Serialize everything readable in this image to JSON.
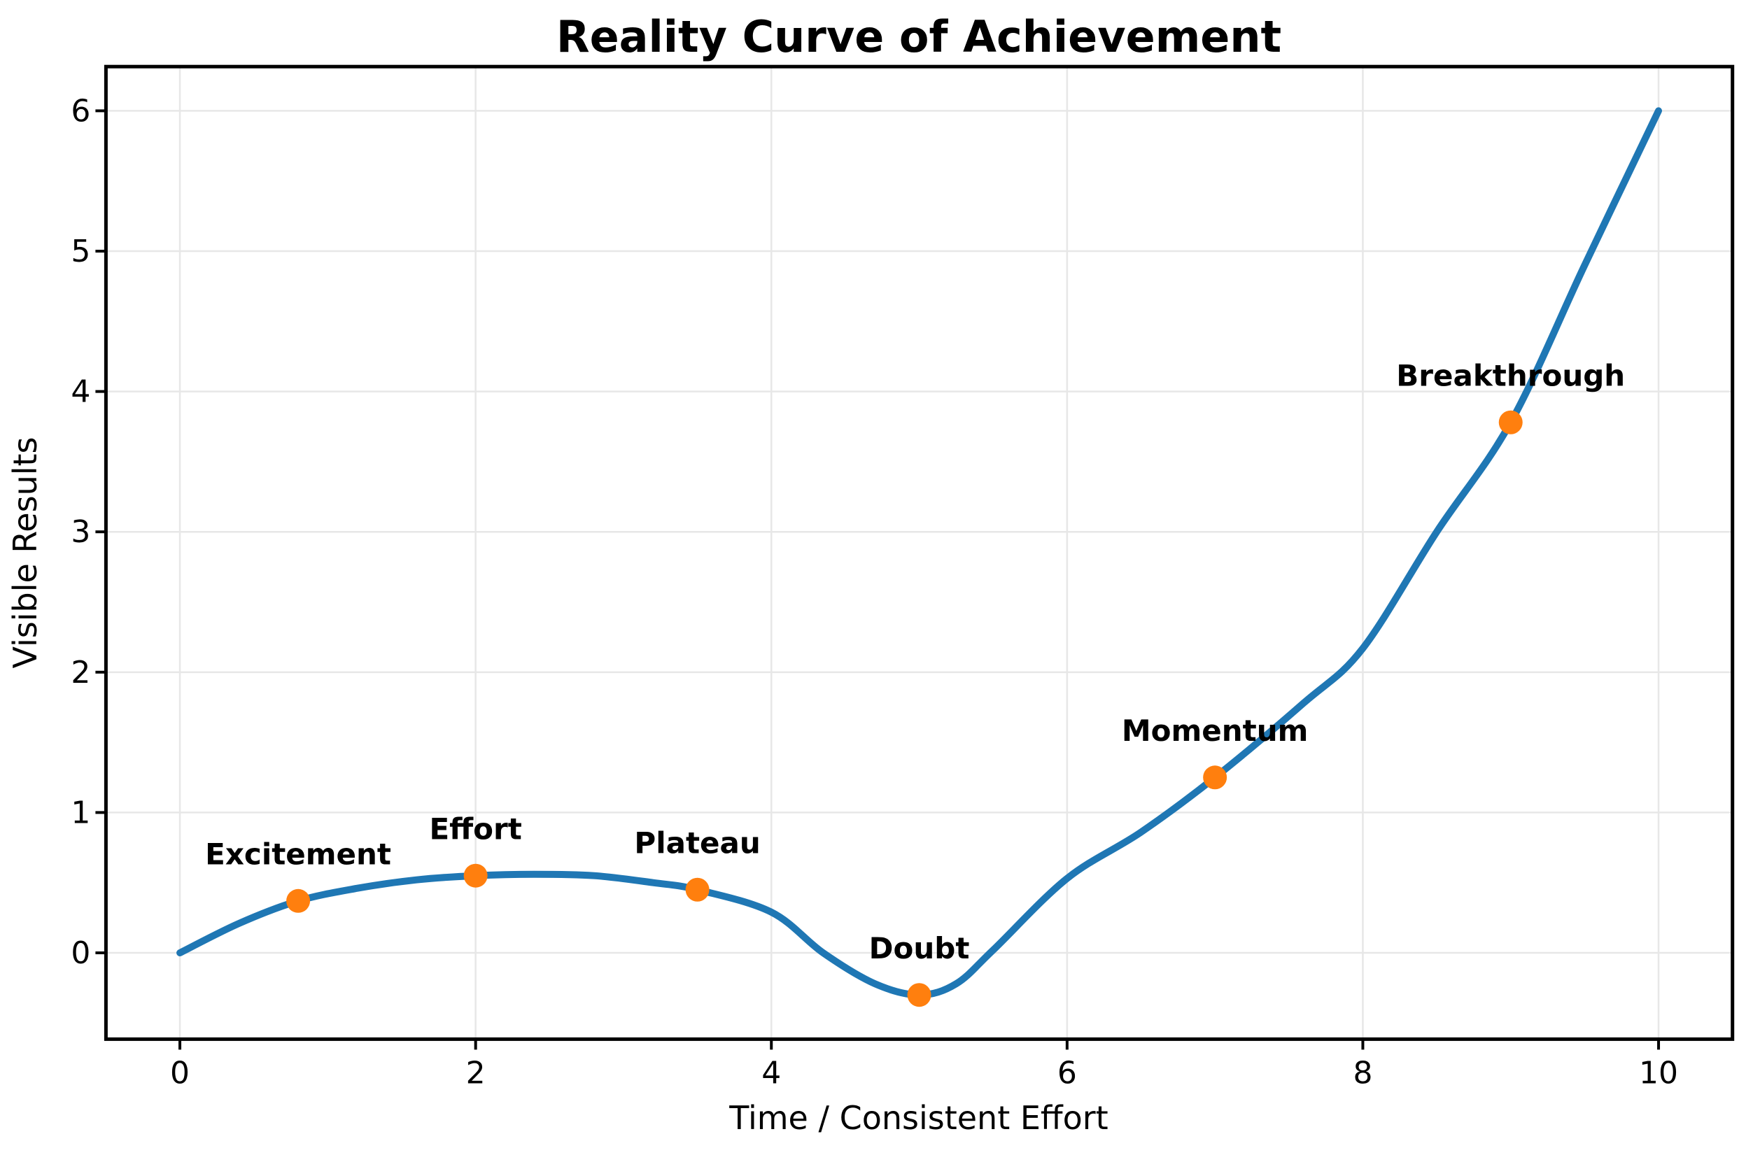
{
  "figure": {
    "title": "Reality Curve of Achievement",
    "xlabel": "Time / Consistent Effort",
    "ylabel": "Visible Results"
  },
  "chart_data": {
    "type": "line",
    "title": "Reality Curve of Achievement",
    "xlabel": "Time / Consistent Effort",
    "ylabel": "Visible Results",
    "xlim": [
      -0.5,
      10.5
    ],
    "ylim": [
      -0.615,
      6.315
    ],
    "xticks": [
      0,
      2,
      4,
      6,
      8,
      10
    ],
    "yticks": [
      0,
      1,
      2,
      3,
      4,
      5,
      6
    ],
    "grid": true,
    "legend": "none",
    "line_color": "#1f77b4",
    "marker_color": "#ff7f0e",
    "grid_color": "#e7e7e7",
    "spine_color": "#000000",
    "curve": [
      [
        0,
        0
      ],
      [
        0.4,
        0.21
      ],
      [
        0.8,
        0.37
      ],
      [
        1.2,
        0.46
      ],
      [
        1.6,
        0.52
      ],
      [
        2,
        0.55
      ],
      [
        2.4,
        0.56
      ],
      [
        2.8,
        0.55
      ],
      [
        3.2,
        0.5
      ],
      [
        3.5,
        0.45
      ],
      [
        4,
        0.29
      ],
      [
        4.35,
        0
      ],
      [
        4.7,
        -0.22
      ],
      [
        5,
        -0.3
      ],
      [
        5.25,
        -0.22
      ],
      [
        5.5,
        0.02
      ],
      [
        6,
        0.53
      ],
      [
        6.5,
        0.86
      ],
      [
        7,
        1.25
      ],
      [
        7.6,
        1.78
      ],
      [
        8,
        2.17
      ],
      [
        8.5,
        3.0
      ],
      [
        9,
        3.78
      ],
      [
        9.5,
        4.9
      ],
      [
        10,
        6
      ]
    ],
    "points": [
      {
        "label": "Excitement",
        "x": 0.8,
        "y": 0.37
      },
      {
        "label": "Effort",
        "x": 2.0,
        "y": 0.55
      },
      {
        "label": "Plateau",
        "x": 3.5,
        "y": 0.45
      },
      {
        "label": "Doubt",
        "x": 5.0,
        "y": -0.3
      },
      {
        "label": "Momentum",
        "x": 7.0,
        "y": 1.25
      },
      {
        "label": "Breakthrough",
        "x": 9.0,
        "y": 3.78
      }
    ],
    "label_offset_y": 0.33
  }
}
